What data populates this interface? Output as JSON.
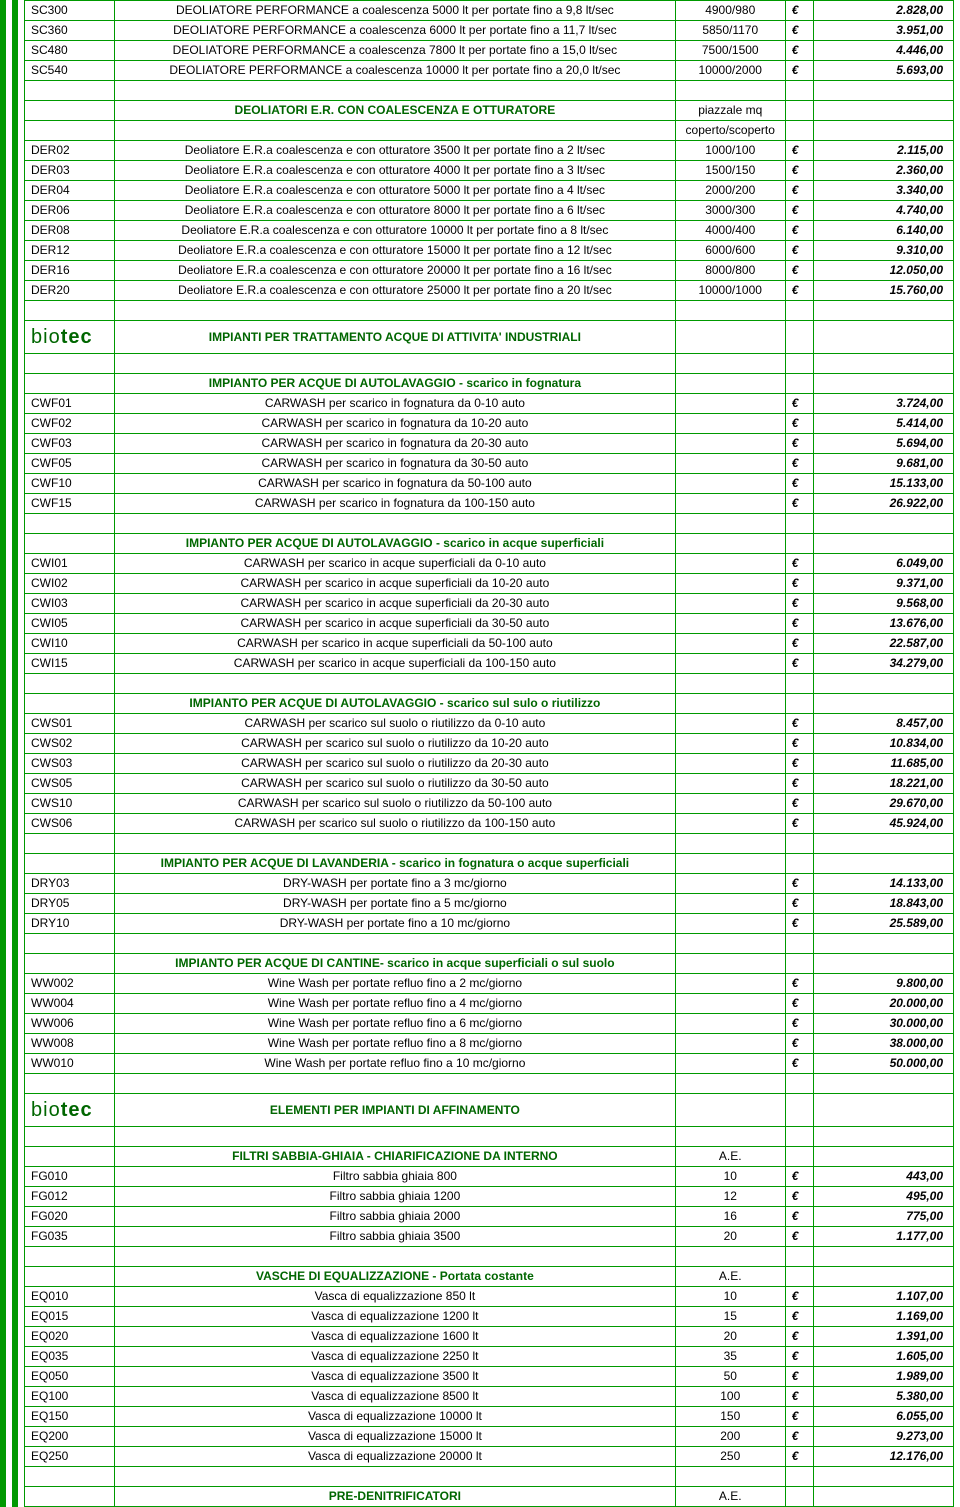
{
  "sc": [
    {
      "code": "SC300",
      "desc": "DEOLIATORE PERFORMANCE a coalescenza 5000 lt per portate fino a 9,8 lt/sec",
      "spec": "4900/980",
      "price": "2.828,00"
    },
    {
      "code": "SC360",
      "desc": "DEOLIATORE PERFORMANCE a coalescenza 6000 lt per portate fino a 11,7 lt/sec",
      "spec": "5850/1170",
      "price": "3.951,00"
    },
    {
      "code": "SC480",
      "desc": "DEOLIATORE PERFORMANCE a coalescenza 7800 lt per portate fino a 15,0 lt/sec",
      "spec": "7500/1500",
      "price": "4.446,00"
    },
    {
      "code": "SC540",
      "desc": "DEOLIATORE PERFORMANCE a coalescenza 10000 lt per portate fino a 20,0 lt/sec",
      "spec": "10000/2000",
      "price": "5.693,00"
    }
  ],
  "der_header": {
    "title": "DEOLIATORI E.R. CON COALESCENZA E OTTURATORE",
    "spec1": "piazzale mq",
    "spec2": "coperto/scoperto"
  },
  "der": [
    {
      "code": "DER02",
      "desc": "Deoliatore E.R.a coalescenza e con otturatore 3500 lt per portate fino a 2 lt/sec",
      "spec": "1000/100",
      "price": "2.115,00"
    },
    {
      "code": "DER03",
      "desc": "Deoliatore E.R.a coalescenza e con otturatore 4000 lt per portate fino a 3 lt/sec",
      "spec": "1500/150",
      "price": "2.360,00"
    },
    {
      "code": "DER04",
      "desc": "Deoliatore E.R.a coalescenza e con otturatore 5000 lt per portate fino a 4 lt/sec",
      "spec": "2000/200",
      "price": "3.340,00"
    },
    {
      "code": "DER06",
      "desc": "Deoliatore E.R.a coalescenza e con otturatore 8000 lt per portate fino a 6 lt/sec",
      "spec": "3000/300",
      "price": "4.740,00"
    },
    {
      "code": "DER08",
      "desc": "Deoliatore E.R.a coalescenza e con otturatore 10000 lt per portate fino a 8 lt/sec",
      "spec": "4000/400",
      "price": "6.140,00"
    },
    {
      "code": "DER12",
      "desc": "Deoliatore E.R.a coalescenza e con otturatore 15000 lt per portate fino a 12 lt/sec",
      "spec": "6000/600",
      "price": "9.310,00"
    },
    {
      "code": "DER16",
      "desc": "Deoliatore E.R.a coalescenza e con otturatore 20000 lt per portate fino a 16 lt/sec",
      "spec": "8000/800",
      "price": "12.050,00"
    },
    {
      "code": "DER20",
      "desc": "Deoliatore E.R.a coalescenza e con otturatore 25000 lt per portate fino a 20 lt/sec",
      "spec": "10000/1000",
      "price": "15.760,00"
    }
  ],
  "biotec1": "IMPIANTI PER TRATTAMENTO ACQUE DI ATTIVITA' INDUSTRIALI",
  "cwf_header": "IMPIANTO PER ACQUE DI AUTOLAVAGGIO - scarico in fognatura",
  "cwf": [
    {
      "code": "CWF01",
      "desc": "CARWASH per scarico in fognatura da 0-10 auto",
      "price": "3.724,00"
    },
    {
      "code": "CWF02",
      "desc": "CARWASH per scarico in fognatura da 10-20 auto",
      "price": "5.414,00"
    },
    {
      "code": "CWF03",
      "desc": "CARWASH per scarico in fognatura da 20-30 auto",
      "price": "5.694,00"
    },
    {
      "code": "CWF05",
      "desc": "CARWASH per scarico in fognatura da 30-50 auto",
      "price": "9.681,00"
    },
    {
      "code": "CWF10",
      "desc": "CARWASH per scarico in fognatura da 50-100 auto",
      "price": "15.133,00"
    },
    {
      "code": "CWF15",
      "desc": "CARWASH per scarico in fognatura da 100-150 auto",
      "price": "26.922,00"
    }
  ],
  "cwi_header": "IMPIANTO PER ACQUE DI AUTOLAVAGGIO - scarico in acque superficiali",
  "cwi": [
    {
      "code": "CWI01",
      "desc": "CARWASH per scarico in acque superficiali da 0-10 auto",
      "price": "6.049,00"
    },
    {
      "code": "CWI02",
      "desc": "CARWASH per scarico in acque superficiali da 10-20 auto",
      "price": "9.371,00"
    },
    {
      "code": "CWI03",
      "desc": "CARWASH per scarico in acque superficiali da 20-30 auto",
      "price": "9.568,00"
    },
    {
      "code": "CWI05",
      "desc": "CARWASH per scarico in acque superficiali da 30-50 auto",
      "price": "13.676,00"
    },
    {
      "code": "CWI10",
      "desc": "CARWASH per scarico in acque superficiali da 50-100 auto",
      "price": "22.587,00"
    },
    {
      "code": "CWI15",
      "desc": "CARWASH per scarico in acque superficiali da 100-150 auto",
      "price": "34.279,00"
    }
  ],
  "cws_header": "IMPIANTO PER ACQUE DI AUTOLAVAGGIO - scarico sul sulo o riutilizzo",
  "cws": [
    {
      "code": "CWS01",
      "desc": "CARWASH per scarico sul suolo o riutilizzo da 0-10 auto",
      "price": "8.457,00"
    },
    {
      "code": "CWS02",
      "desc": "CARWASH per scarico sul suolo o riutilizzo da 10-20 auto",
      "price": "10.834,00"
    },
    {
      "code": "CWS03",
      "desc": "CARWASH per scarico sul suolo o riutilizzo da 20-30 auto",
      "price": "11.685,00"
    },
    {
      "code": "CWS05",
      "desc": "CARWASH per scarico sul suolo o riutilizzo da 30-50 auto",
      "price": "18.221,00"
    },
    {
      "code": "CWS10",
      "desc": "CARWASH per scarico sul suolo o riutilizzo da 50-100 auto",
      "price": "29.670,00"
    },
    {
      "code": "CWS06",
      "desc": "CARWASH per scarico sul suolo o riutilizzo da 100-150 auto",
      "price": "45.924,00"
    }
  ],
  "dry_header": "IMPIANTO PER ACQUE DI LAVANDERIA - scarico in fognatura o acque superficiali",
  "dry": [
    {
      "code": "DRY03",
      "desc": "DRY-WASH per portate fino a 3 mc/giorno",
      "price": "14.133,00"
    },
    {
      "code": "DRY05",
      "desc": "DRY-WASH per portate fino a 5 mc/giorno",
      "price": "18.843,00"
    },
    {
      "code": "DRY10",
      "desc": "DRY-WASH per portate fino a 10 mc/giorno",
      "price": "25.589,00"
    }
  ],
  "ww_header": "IMPIANTO PER ACQUE DI CANTINE- scarico in acque superficiali o sul suolo",
  "ww": [
    {
      "code": "WW002",
      "desc": "Wine Wash per portate refluo fino a 2 mc/giorno",
      "price": "9.800,00"
    },
    {
      "code": "WW004",
      "desc": "Wine Wash per portate refluo fino a 4 mc/giorno",
      "price": "20.000,00"
    },
    {
      "code": "WW006",
      "desc": "Wine Wash per portate refluo fino a 6 mc/giorno",
      "price": "30.000,00"
    },
    {
      "code": "WW008",
      "desc": "Wine Wash per portate refluo fino a 8 mc/giorno",
      "price": "38.000,00"
    },
    {
      "code": "WW010",
      "desc": "Wine Wash per portate refluo fino a 10 mc/giorno",
      "price": "50.000,00"
    }
  ],
  "biotec2": "ELEMENTI PER IMPIANTI DI AFFINAMENTO",
  "fg_header": {
    "title": "FILTRI SABBIA-GHIAIA - CHIARIFICAZIONE DA INTERNO",
    "spec": "A.E."
  },
  "fg": [
    {
      "code": "FG010",
      "desc": "Filtro sabbia ghiaia 800",
      "spec": "10",
      "price": "443,00"
    },
    {
      "code": "FG012",
      "desc": "Filtro sabbia ghiaia 1200",
      "spec": "12",
      "price": "495,00"
    },
    {
      "code": "FG020",
      "desc": "Filtro sabbia ghiaia 2000",
      "spec": "16",
      "price": "775,00"
    },
    {
      "code": "FG035",
      "desc": "Filtro sabbia ghiaia 3500",
      "spec": "20",
      "price": "1.177,00"
    }
  ],
  "eq_header": {
    "title": "VASCHE DI EQUALIZZAZIONE - Portata costante",
    "spec": "A.E."
  },
  "eq": [
    {
      "code": "EQ010",
      "desc": "Vasca di equalizzazione 850 lt",
      "spec": "10",
      "price": "1.107,00"
    },
    {
      "code": "EQ015",
      "desc": "Vasca di equalizzazione 1200 lt",
      "spec": "15",
      "price": "1.169,00"
    },
    {
      "code": "EQ020",
      "desc": "Vasca di equalizzazione 1600 lt",
      "spec": "20",
      "price": "1.391,00"
    },
    {
      "code": "EQ035",
      "desc": "Vasca di equalizzazione 2250 lt",
      "spec": "35",
      "price": "1.605,00"
    },
    {
      "code": "EQ050",
      "desc": "Vasca di equalizzazione 3500 lt",
      "spec": "50",
      "price": "1.989,00"
    },
    {
      "code": "EQ100",
      "desc": "Vasca di equalizzazione 8500 lt",
      "spec": "100",
      "price": "5.380,00"
    },
    {
      "code": "EQ150",
      "desc": "Vasca di equalizzazione 10000 lt",
      "spec": "150",
      "price": "6.055,00"
    },
    {
      "code": "EQ200",
      "desc": "Vasca di equalizzazione 15000 lt",
      "spec": "200",
      "price": "9.273,00"
    },
    {
      "code": "EQ250",
      "desc": "Vasca di equalizzazione 20000 lt",
      "spec": "250",
      "price": "12.176,00"
    }
  ],
  "pd_header": {
    "title": "PRE-DENITRIFICATORI",
    "spec": "A.E."
  },
  "eur": "€",
  "brand": {
    "a": "bio",
    "b": "tec"
  }
}
